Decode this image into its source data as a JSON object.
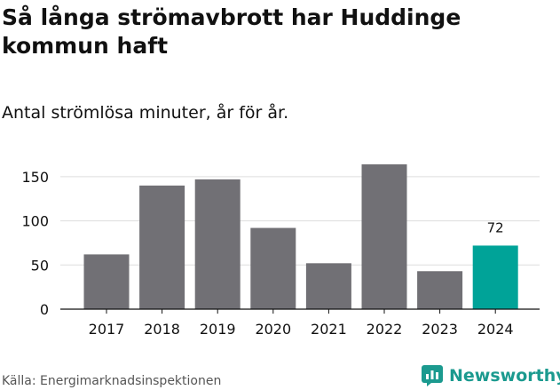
{
  "header": {
    "title": "Så långa strömavbrott har Huddinge kommun haft",
    "subtitle": "Antal strömlösa minuter, år för år."
  },
  "footer": {
    "source": "Källa: Energimarknadsinspektionen",
    "brand": "Newsworthy"
  },
  "colors": {
    "bar": "#717075",
    "highlight": "#00a398",
    "grid": "#dddddd",
    "axis": "#111111",
    "brand": "#1b9a8f"
  },
  "chart_data": {
    "type": "bar",
    "categories": [
      "2017",
      "2018",
      "2019",
      "2020",
      "2021",
      "2022",
      "2023",
      "2024"
    ],
    "values": [
      62,
      140,
      147,
      92,
      52,
      164,
      43,
      72
    ],
    "ylim": [
      0,
      165
    ],
    "yticks": [
      0,
      50,
      100,
      150
    ],
    "ytick_labels": [
      "0",
      "50",
      "100",
      "150"
    ],
    "highlight_index": 7,
    "data_labels": [
      {
        "index": 7,
        "text": "72"
      }
    ],
    "grid": true
  }
}
